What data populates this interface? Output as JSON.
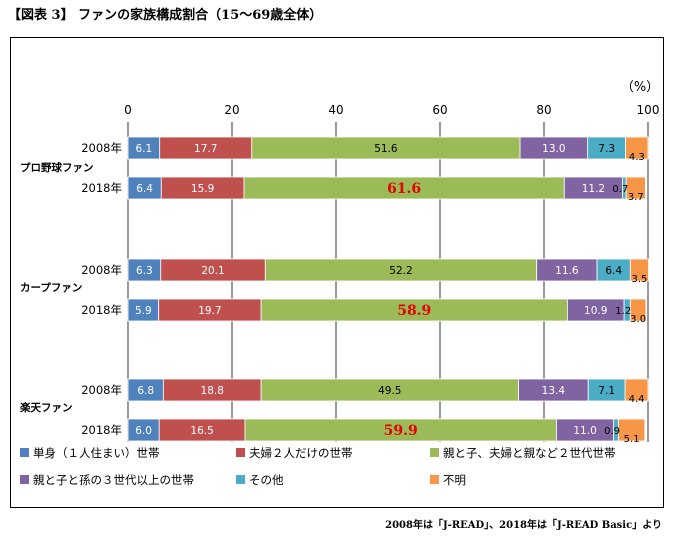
{
  "title": "【図表 3】 ファンの家族構成割合（15～69歳全体）",
  "footnote": "2008年は「J-READ」、2018年は「J-READ Basic」より",
  "chart_data": {
    "type": "bar",
    "orientation": "horizontal",
    "stacked": true,
    "unit_label": "（%）",
    "xlim": [
      0,
      100
    ],
    "xticks": [
      "0",
      "20",
      "40",
      "60",
      "80",
      "100"
    ],
    "grid": true,
    "groups": [
      "プロ野球ファン",
      "カープファン",
      "楽天ファン"
    ],
    "categories": [
      "2008年",
      "2018年",
      "2008年",
      "2018年",
      "2008年",
      "2018年"
    ],
    "series": [
      {
        "name": "単身（１人住まい）世帯",
        "color": "#4f81bd",
        "values": [
          6.1,
          6.4,
          6.3,
          5.9,
          6.8,
          6.0
        ]
      },
      {
        "name": "夫婦２人だけの世帯",
        "color": "#c0504d",
        "values": [
          17.7,
          15.9,
          20.1,
          19.7,
          18.8,
          16.5
        ]
      },
      {
        "name": "親と子、夫婦と親など２世代世帯",
        "color": "#9bbb59",
        "values": [
          51.6,
          61.6,
          52.2,
          58.9,
          49.5,
          59.9
        ]
      },
      {
        "name": "親と子と孫の３世代以上の世帯",
        "color": "#8064a2",
        "values": [
          13.0,
          11.2,
          11.6,
          10.9,
          13.4,
          11.0
        ]
      },
      {
        "name": "その他",
        "color": "#4bacc6",
        "values": [
          7.3,
          0.7,
          6.4,
          1.2,
          7.1,
          0.9
        ]
      },
      {
        "name": "不明",
        "color": "#f79646",
        "values": [
          4.3,
          3.7,
          3.5,
          3.0,
          4.4,
          5.1
        ]
      }
    ],
    "highlight_color": "#e60000",
    "legend_position": "bottom"
  }
}
